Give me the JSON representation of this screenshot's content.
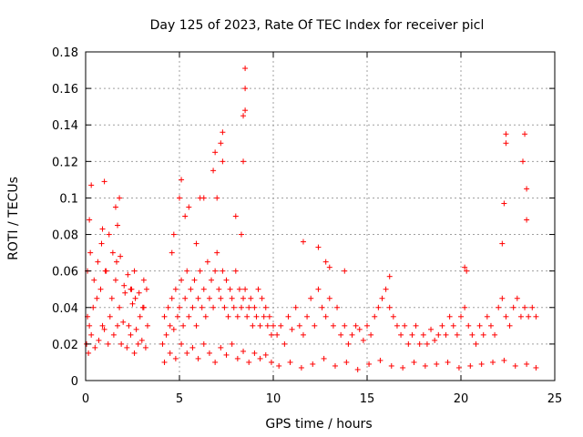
{
  "chart_data": {
    "type": "scatter",
    "title": "Day 125 of 2023, Rate Of TEC Index for receiver picl",
    "xlabel": "GPS time / hours",
    "ylabel": "ROTI / TECUs",
    "xlim": [
      0,
      25
    ],
    "ylim": [
      0,
      0.18
    ],
    "xticks": [
      "0",
      "5",
      "10",
      "15",
      "20",
      "25"
    ],
    "xtick_values": [
      0,
      5,
      10,
      15,
      20,
      25
    ],
    "yticks": [
      "0",
      "0.02",
      "0.04",
      "0.06",
      "0.08",
      "0.1",
      "0.12",
      "0.14",
      "0.16",
      "0.18"
    ],
    "ytick_values": [
      0,
      0.02,
      0.04,
      0.06,
      0.08,
      0.1,
      0.12,
      0.14,
      0.16,
      0.18
    ],
    "grid": true,
    "marker": "+",
    "marker_color": "#ff0000",
    "series": [
      {
        "x": [
          0.05,
          0.1,
          0.15,
          0.2,
          0.3,
          0.4,
          0.5,
          0.6,
          0.7,
          0.8,
          0.9,
          1.0,
          1.1,
          1.2,
          1.3,
          1.4,
          1.5,
          1.6,
          1.7,
          1.8,
          1.9,
          2.0,
          2.1,
          2.2,
          2.3,
          2.4,
          2.5,
          2.6,
          2.7,
          2.8,
          2.9,
          3.0,
          3.1,
          3.2,
          3.3,
          0.1,
          0.25,
          0.45,
          0.65,
          0.85,
          1.05,
          1.25,
          1.45,
          1.65,
          1.85,
          2.05,
          2.25,
          2.45,
          2.65,
          2.85,
          3.05,
          3.25,
          0.2,
          0.3,
          0.9,
          1.0,
          1.6,
          1.7,
          1.8,
          2.4,
          2.6,
          3.1,
          4.1,
          4.2,
          4.3,
          4.4,
          4.5,
          4.6,
          4.7,
          4.8,
          4.9,
          5.0,
          5.1,
          5.2,
          5.3,
          5.4,
          5.5,
          5.6,
          5.7,
          5.8,
          5.9,
          6.0,
          6.1,
          6.2,
          6.3,
          6.4,
          6.5,
          6.6,
          6.7,
          6.8,
          6.9,
          7.0,
          7.1,
          7.2,
          7.3,
          7.4,
          7.5,
          7.6,
          7.7,
          7.8,
          7.9,
          8.0,
          8.1,
          8.2,
          8.3,
          8.4,
          8.5,
          8.6,
          8.7,
          8.8,
          8.9,
          9.0,
          9.1,
          9.2,
          9.3,
          9.4,
          9.5,
          9.6,
          9.7,
          9.8,
          9.9,
          10.0,
          4.2,
          4.5,
          4.8,
          5.1,
          5.4,
          5.7,
          6.0,
          6.3,
          6.6,
          6.9,
          7.2,
          7.5,
          7.8,
          8.1,
          8.4,
          8.7,
          9.0,
          9.3,
          9.6,
          9.9,
          4.6,
          4.7,
          5.0,
          5.1,
          5.3,
          5.5,
          5.9,
          6.1,
          6.3,
          6.8,
          6.9,
          7.0,
          7.2,
          7.3,
          7.3,
          8.0,
          8.3,
          8.4,
          8.4,
          8.5,
          8.5,
          8.5,
          10.2,
          10.4,
          10.6,
          10.8,
          11.0,
          11.2,
          11.4,
          11.6,
          11.8,
          12.0,
          12.2,
          12.4,
          12.6,
          12.8,
          13.0,
          13.2,
          13.4,
          13.6,
          13.8,
          14.0,
          14.2,
          14.4,
          14.6,
          14.8,
          15.0,
          15.2,
          15.4,
          15.6,
          15.8,
          16.0,
          16.2,
          16.4,
          16.6,
          16.8,
          17.0,
          17.2,
          17.4,
          17.6,
          17.8,
          18.0,
          18.2,
          18.4,
          18.6,
          18.8,
          19.0,
          19.2,
          19.4,
          19.6,
          19.8,
          20.0,
          20.2,
          20.4,
          20.6,
          20.8,
          21.0,
          21.2,
          21.4,
          21.6,
          21.8,
          22.0,
          22.2,
          22.4,
          22.6,
          22.8,
          23.0,
          23.2,
          23.4,
          23.6,
          23.8,
          24.0,
          10.3,
          10.9,
          11.5,
          12.1,
          12.7,
          13.3,
          13.9,
          14.5,
          15.1,
          15.7,
          16.3,
          16.9,
          17.5,
          18.1,
          18.7,
          19.3,
          19.9,
          20.5,
          21.1,
          21.7,
          22.3,
          22.9,
          23.5,
          24.0,
          11.6,
          12.4,
          12.8,
          13.0,
          13.8,
          16.2,
          20.2,
          20.3,
          22.3,
          22.4,
          22.4,
          23.3,
          23.4,
          23.5,
          23.5,
          22.2
        ],
        "y": [
          0.02,
          0.035,
          0.015,
          0.03,
          0.025,
          0.04,
          0.018,
          0.045,
          0.022,
          0.05,
          0.03,
          0.028,
          0.06,
          0.02,
          0.035,
          0.045,
          0.025,
          0.055,
          0.03,
          0.04,
          0.02,
          0.032,
          0.048,
          0.018,
          0.03,
          0.025,
          0.042,
          0.015,
          0.028,
          0.02,
          0.035,
          0.022,
          0.04,
          0.018,
          0.03,
          0.06,
          0.07,
          0.055,
          0.065,
          0.075,
          0.06,
          0.08,
          0.07,
          0.065,
          0.068,
          0.052,
          0.058,
          0.05,
          0.045,
          0.048,
          0.04,
          0.05,
          0.088,
          0.107,
          0.083,
          0.109,
          0.095,
          0.085,
          0.1,
          0.05,
          0.06,
          0.055,
          0.02,
          0.035,
          0.025,
          0.04,
          0.03,
          0.045,
          0.028,
          0.05,
          0.035,
          0.04,
          0.055,
          0.03,
          0.045,
          0.06,
          0.035,
          0.05,
          0.04,
          0.055,
          0.03,
          0.045,
          0.06,
          0.04,
          0.05,
          0.035,
          0.065,
          0.045,
          0.055,
          0.04,
          0.06,
          0.07,
          0.05,
          0.045,
          0.06,
          0.04,
          0.055,
          0.035,
          0.05,
          0.045,
          0.04,
          0.06,
          0.035,
          0.05,
          0.04,
          0.045,
          0.05,
          0.035,
          0.04,
          0.045,
          0.03,
          0.04,
          0.035,
          0.05,
          0.03,
          0.045,
          0.035,
          0.04,
          0.03,
          0.035,
          0.025,
          0.03,
          0.01,
          0.015,
          0.012,
          0.02,
          0.015,
          0.018,
          0.012,
          0.02,
          0.015,
          0.01,
          0.018,
          0.014,
          0.02,
          0.012,
          0.016,
          0.01,
          0.015,
          0.012,
          0.014,
          0.01,
          0.07,
          0.08,
          0.1,
          0.11,
          0.09,
          0.095,
          0.075,
          0.1,
          0.1,
          0.115,
          0.125,
          0.1,
          0.13,
          0.12,
          0.136,
          0.09,
          0.08,
          0.12,
          0.145,
          0.16,
          0.148,
          0.171,
          0.025,
          0.03,
          0.02,
          0.035,
          0.028,
          0.04,
          0.03,
          0.025,
          0.035,
          0.045,
          0.03,
          0.05,
          0.04,
          0.035,
          0.045,
          0.03,
          0.04,
          0.025,
          0.03,
          0.02,
          0.025,
          0.03,
          0.028,
          0.022,
          0.03,
          0.025,
          0.035,
          0.04,
          0.045,
          0.05,
          0.04,
          0.035,
          0.03,
          0.025,
          0.03,
          0.02,
          0.025,
          0.03,
          0.02,
          0.025,
          0.02,
          0.028,
          0.022,
          0.025,
          0.03,
          0.025,
          0.035,
          0.03,
          0.025,
          0.035,
          0.04,
          0.03,
          0.025,
          0.02,
          0.03,
          0.025,
          0.035,
          0.03,
          0.025,
          0.04,
          0.045,
          0.035,
          0.03,
          0.04,
          0.045,
          0.035,
          0.04,
          0.035,
          0.04,
          0.035,
          0.008,
          0.01,
          0.007,
          0.009,
          0.012,
          0.008,
          0.01,
          0.006,
          0.009,
          0.011,
          0.008,
          0.007,
          0.01,
          0.008,
          0.009,
          0.01,
          0.007,
          0.008,
          0.009,
          0.01,
          0.011,
          0.008,
          0.009,
          0.007,
          0.076,
          0.073,
          0.065,
          0.062,
          0.06,
          0.057,
          0.062,
          0.06,
          0.097,
          0.13,
          0.135,
          0.12,
          0.135,
          0.105,
          0.088,
          0.075
        ]
      }
    ]
  }
}
